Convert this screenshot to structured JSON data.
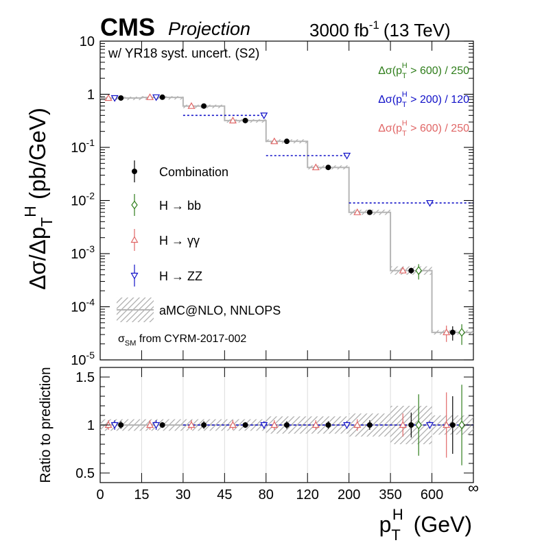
{
  "header": {
    "experiment": "CMS",
    "label": "Projection",
    "luminosity": "3000 fb",
    "lumi_exponent": "-1",
    "energy": "(13 TeV)"
  },
  "colors": {
    "combination": "#000000",
    "hbb": "#2e7d1a",
    "hgg": "#e06666",
    "hzz": "#1010c8",
    "prediction": "#aaaaaa"
  },
  "chart_data": {
    "type": "scatter",
    "subtitle": "w/ YR18 syst. uncert. (S2)",
    "xlabel": "p_T^H (GeV)",
    "ylabel": "Δσ/Δp_T^H (pb/GeV)",
    "ratio_ylabel": "Ratio to prediction",
    "x_bin_edges": [
      "0",
      "15",
      "30",
      "45",
      "80",
      "120",
      "200",
      "350",
      "600",
      "∞"
    ],
    "y_scale": "log",
    "ylim": [
      1e-05,
      10
    ],
    "y_ticks": [
      "10",
      "1",
      "10^-1",
      "10^-2",
      "10^-3",
      "10^-4",
      "10^-5"
    ],
    "ratio_ylim": [
      0.4,
      1.6
    ],
    "ratio_ticks": [
      "1.5",
      "1",
      "0.5"
    ],
    "grid": "vertical lines in ratio panel",
    "legend_position": "left-center",
    "prediction": {
      "name": "aMC@NLO, NNLOPS",
      "values": [
        0.85,
        0.87,
        0.6,
        0.32,
        0.13,
        0.042,
        0.006,
        0.00048,
        3.3e-05
      ],
      "band_rel": [
        0.06,
        0.06,
        0.06,
        0.06,
        0.09,
        0.09,
        0.12,
        0.2,
        0.1
      ]
    },
    "series": [
      {
        "name": "Combination",
        "bins": [
          0,
          1,
          2,
          3,
          4,
          5,
          6,
          7,
          8
        ],
        "values": [
          0.85,
          0.88,
          0.6,
          0.32,
          0.13,
          0.042,
          0.006,
          0.00048,
          3.3e-05
        ],
        "ratio": [
          1,
          1,
          1,
          1,
          1,
          1,
          1,
          1,
          1
        ],
        "ratio_err": [
          0.04,
          0.03,
          0.04,
          0.03,
          0.04,
          0.04,
          0.05,
          0.13,
          0.3
        ]
      },
      {
        "name": "H → bb",
        "bins": [
          7,
          8
        ],
        "values": [
          0.00048,
          3.3e-05
        ],
        "ratio": [
          1,
          1
        ],
        "ratio_err": [
          0.32,
          0.42
        ]
      },
      {
        "name": "H → γγ",
        "bins": [
          0,
          1,
          2,
          3,
          4,
          5,
          6,
          7,
          8
        ],
        "values": [
          0.85,
          0.88,
          0.6,
          0.32,
          0.13,
          0.042,
          0.006,
          0.00048,
          3.3e-05
        ],
        "ratio": [
          1,
          1,
          1,
          1,
          1,
          1,
          1,
          1,
          1
        ],
        "ratio_err": [
          0.05,
          0.05,
          0.05,
          0.05,
          0.05,
          0.05,
          0.06,
          0.12,
          0.34
        ]
      },
      {
        "name": "H → ZZ",
        "bins": [
          0,
          1,
          3,
          5,
          7
        ],
        "values": [
          0.85,
          0.88,
          0.4,
          0.07,
          0.009
        ],
        "ratio": [
          1,
          1,
          1,
          1,
          1
        ],
        "ratio_err": [
          0.05,
          0.05,
          0.04,
          0.04,
          0.04
        ]
      }
    ],
    "inclusive_lines": [
      {
        "label": "Δσ(p_T^H > 600) / 250",
        "color": "#2e7d1a"
      },
      {
        "label": "Δσ(p_T^H > 200) / 120",
        "color": "#1010c8",
        "x_from_bin": 6,
        "value": 0.009
      },
      {
        "label": "Δσ(p_T^H > 600) / 250",
        "color": "#e06666"
      }
    ],
    "zz_merged_bins": [
      {
        "from": 2,
        "to": 3,
        "value": 0.4
      },
      {
        "from": 4,
        "to": 5,
        "value": 0.07
      },
      {
        "from": 6,
        "to": 8,
        "value": 0.009
      }
    ],
    "footnote": "σ_SM from CYRM-2017-002"
  }
}
